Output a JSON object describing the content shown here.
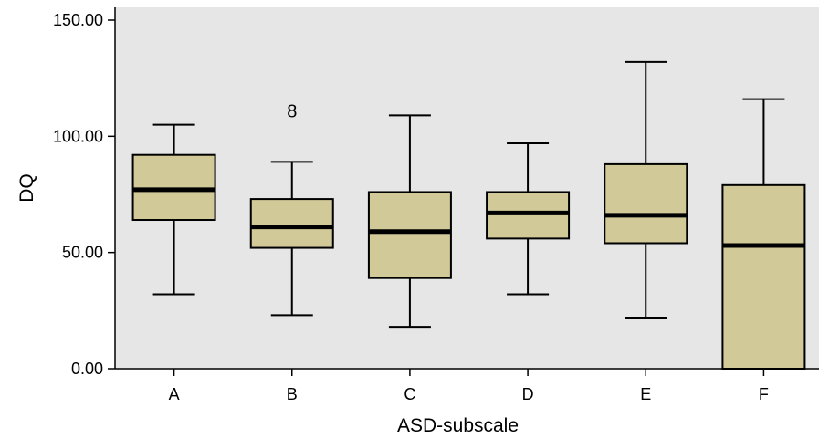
{
  "chart_data": {
    "type": "boxplot",
    "xlabel": "ASD-subscale",
    "ylabel": "DQ",
    "ylim": [
      0,
      150
    ],
    "yticks": [
      "0.00",
      "50.00",
      "100.00",
      "150.00"
    ],
    "ytick_values": [
      0,
      50,
      100,
      150
    ],
    "categories": [
      "A",
      "B",
      "C",
      "D",
      "E",
      "F"
    ],
    "boxes": [
      {
        "category": "A",
        "min": 32,
        "q1": 64,
        "median": 77,
        "q3": 92,
        "max": 105
      },
      {
        "category": "B",
        "min": 23,
        "q1": 52,
        "median": 61,
        "q3": 73,
        "max": 89
      },
      {
        "category": "C",
        "min": 18,
        "q1": 39,
        "median": 59,
        "q3": 76,
        "max": 109
      },
      {
        "category": "D",
        "min": 32,
        "q1": 56,
        "median": 67,
        "q3": 76,
        "max": 97
      },
      {
        "category": "E",
        "min": 22,
        "q1": 54,
        "median": 66,
        "q3": 88,
        "max": 132
      },
      {
        "category": "F",
        "min": 0,
        "q1": 0,
        "median": 53,
        "q3": 79,
        "max": 116
      }
    ],
    "outliers": [
      {
        "category": "B",
        "value": 111,
        "label": "8"
      }
    ],
    "grid": false,
    "colors": {
      "plot_background": "#e6e6e6",
      "box_fill": "#d2c999",
      "stroke": "#000000"
    }
  }
}
